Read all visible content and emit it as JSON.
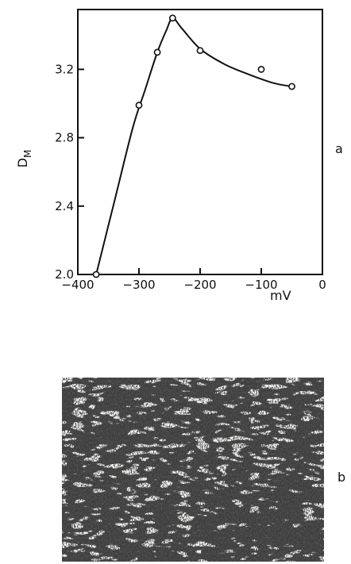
{
  "chart_data": {
    "type": "scatter",
    "panel_label": "a",
    "xlabel": "mV",
    "ylabel_main": "D",
    "ylabel_sub": "M",
    "xlim": [
      -400,
      0
    ],
    "ylim": [
      2.0,
      3.55
    ],
    "x_ticks": [
      -400,
      -300,
      -200,
      -100,
      0
    ],
    "x_tick_labels": [
      "−400",
      "−300",
      "−200",
      "−100",
      "0"
    ],
    "y_ticks": [
      2.0,
      2.4,
      2.8,
      3.2
    ],
    "y_tick_labels": [
      "2.0",
      "2.4",
      "2.8",
      "3.2"
    ],
    "grid": false,
    "series": [
      {
        "x": [
          -370,
          -300,
          -270,
          -245,
          -200,
          -100,
          -50
        ],
        "y": [
          2.0,
          2.99,
          3.3,
          3.5,
          3.31,
          3.2,
          3.1
        ]
      }
    ],
    "fit_curve": {
      "x": [
        -370,
        -340,
        -310,
        -290,
        -270,
        -255,
        -245,
        -230,
        -200,
        -160,
        -120,
        -80,
        -50
      ],
      "y": [
        2.0,
        2.43,
        2.86,
        3.08,
        3.3,
        3.43,
        3.5,
        3.44,
        3.32,
        3.23,
        3.17,
        3.12,
        3.1
      ]
    }
  },
  "micrograph": {
    "label": "b"
  }
}
